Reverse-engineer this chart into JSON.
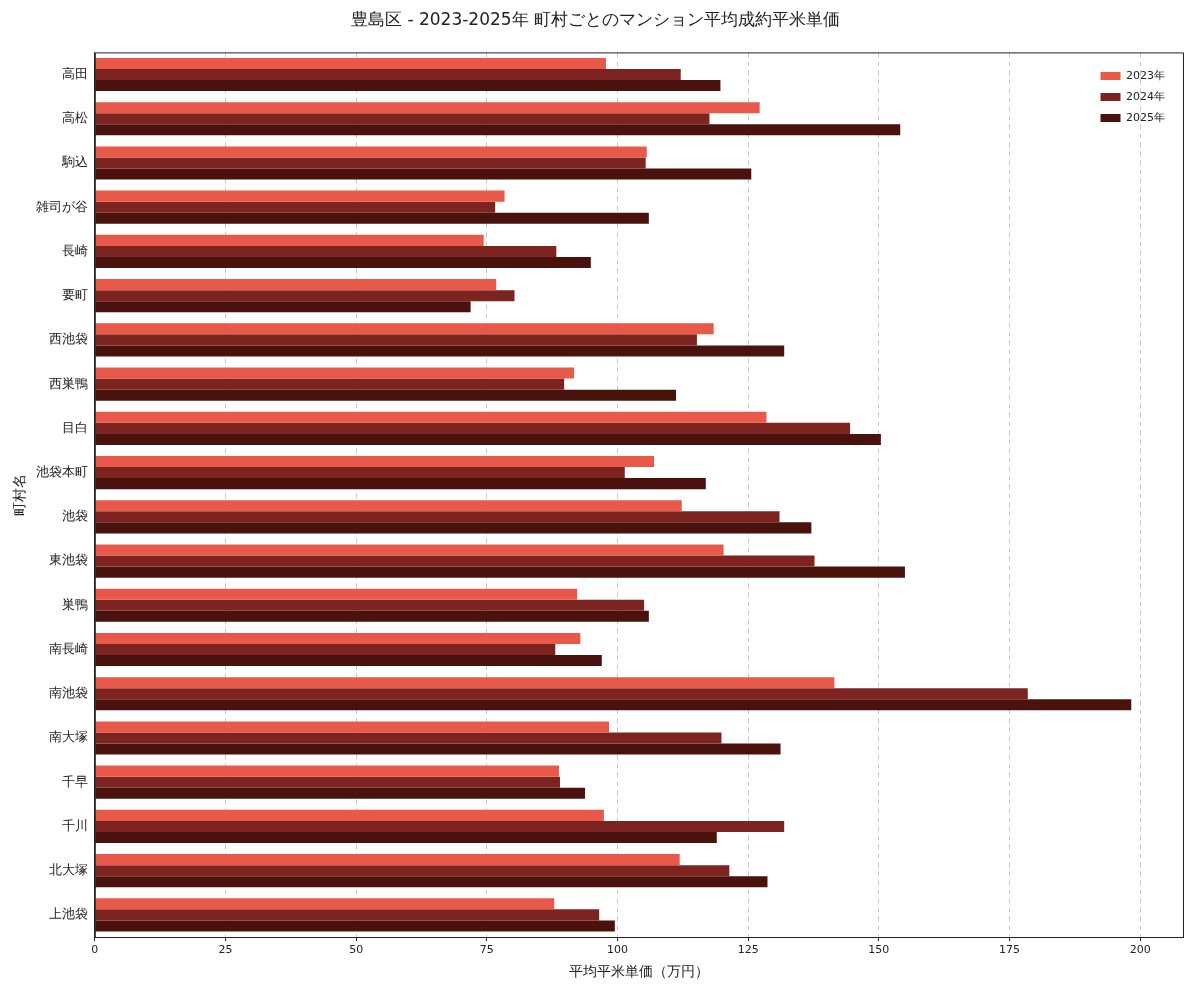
{
  "chart_data": {
    "type": "bar",
    "orientation": "horizontal",
    "title": "豊島区 - 2023-2025年 町村ごとのマンション平均成約平米単価",
    "xlabel": "平均平米単価（万円）",
    "ylabel": "町村名",
    "categories": [
      "高田",
      "高松",
      "駒込",
      "雑司が谷",
      "長崎",
      "要町",
      "西池袋",
      "西巣鴨",
      "目白",
      "池袋本町",
      "池袋",
      "東池袋",
      "巣鴨",
      "南長崎",
      "南池袋",
      "南大塚",
      "千早",
      "千川",
      "北大塚",
      "上池袋"
    ],
    "series": [
      {
        "name": "2023年",
        "color": "#e8594a",
        "values": [
          97.8,
          127.2,
          105.6,
          78.4,
          74.4,
          76.8,
          118.4,
          91.7,
          128.5,
          107.0,
          112.3,
          120.3,
          92.3,
          92.9,
          141.5,
          98.4,
          88.8,
          97.4,
          111.9,
          87.9
        ]
      },
      {
        "name": "2024年",
        "color": "#7d2420",
        "values": [
          112.1,
          117.6,
          105.4,
          76.6,
          88.3,
          80.3,
          115.2,
          89.8,
          144.5,
          101.4,
          131.0,
          137.7,
          105.1,
          88.1,
          178.5,
          119.9,
          89.0,
          131.9,
          121.4,
          96.5
        ]
      },
      {
        "name": "2025年",
        "color": "#4a120c",
        "values": [
          119.7,
          154.1,
          125.6,
          106.0,
          94.9,
          71.9,
          131.9,
          111.2,
          150.4,
          116.9,
          137.1,
          155.0,
          106.0,
          97.0,
          198.3,
          131.2,
          93.8,
          119.0,
          128.7,
          99.5
        ]
      }
    ],
    "xlim": [
      0,
      208.2
    ],
    "xticks": [
      0,
      25,
      50,
      75,
      100,
      125,
      150,
      175,
      200
    ],
    "grid": "x",
    "legend": "top right"
  }
}
